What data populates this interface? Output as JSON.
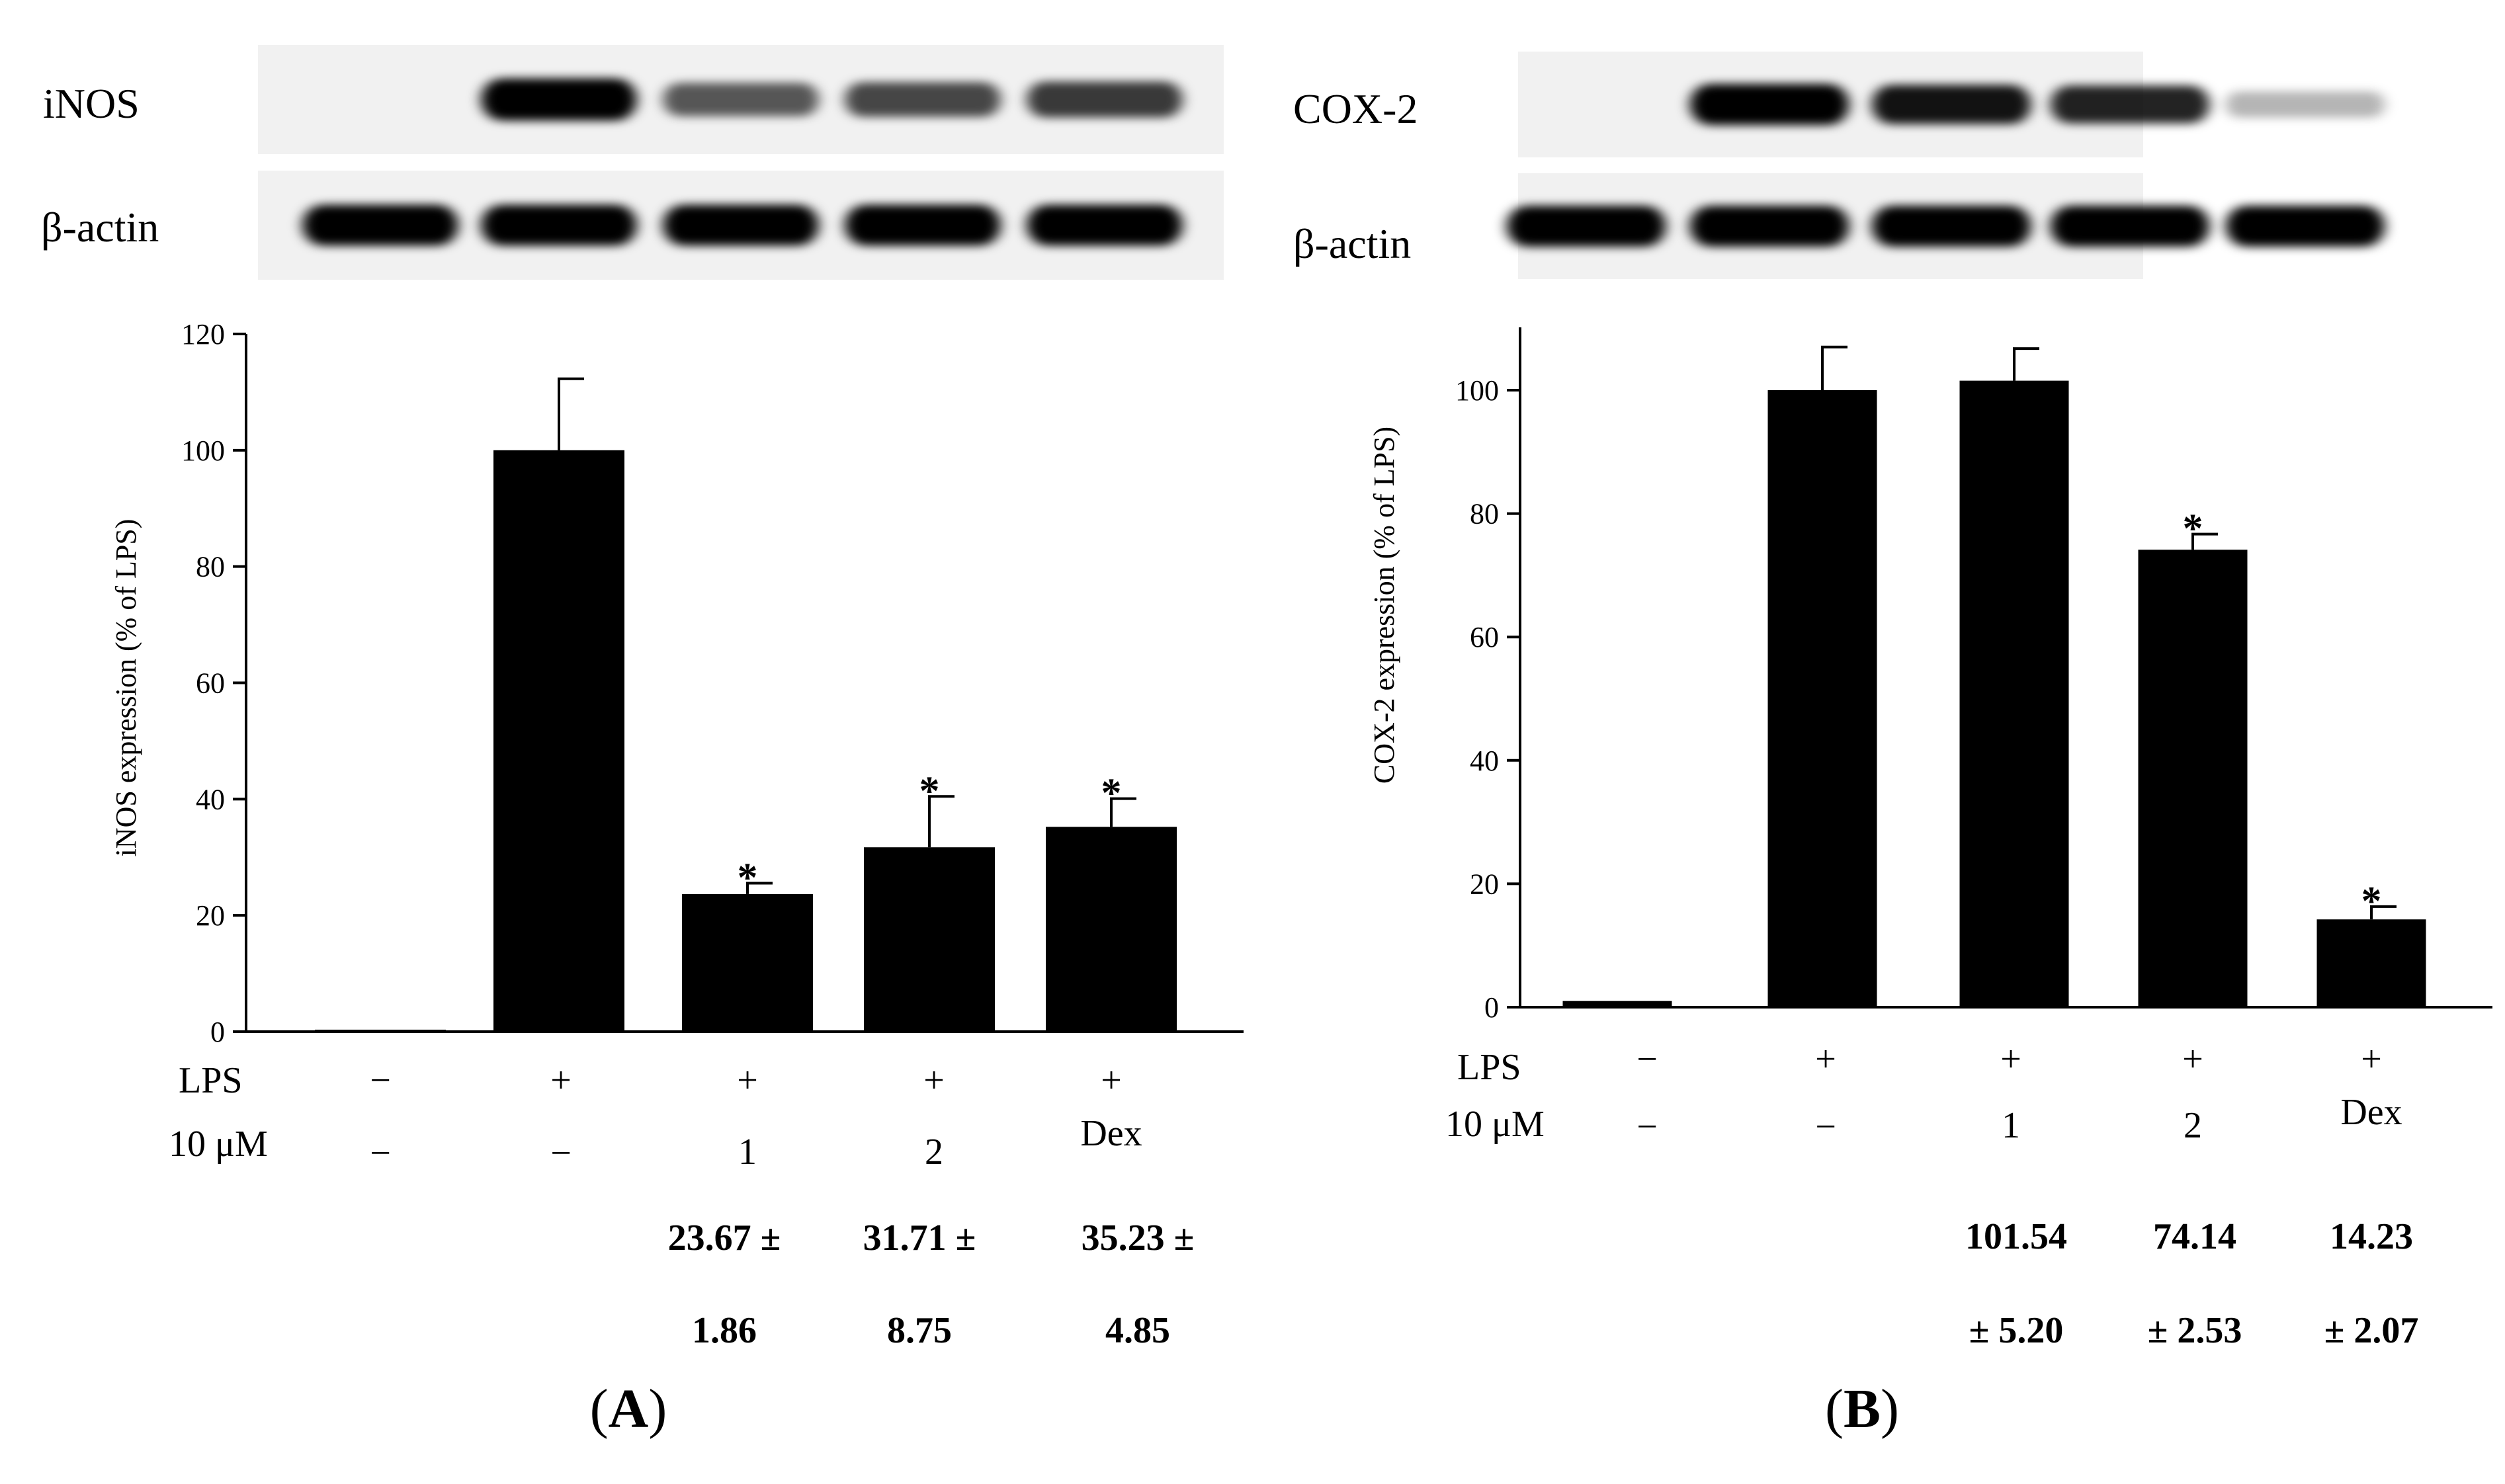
{
  "panels": [
    {
      "id": "A",
      "panel_label": "A",
      "blot": {
        "target_label": "iNOS",
        "actin_label": "β-actin",
        "target_intensity": [
          0.0,
          1.0,
          0.55,
          0.62,
          0.68
        ],
        "actin_intensity": [
          1.0,
          1.0,
          1.0,
          1.0,
          1.0
        ]
      },
      "conditions": {
        "lps_label": "LPS",
        "treatment_label": "10 μM",
        "lps": [
          "−",
          "+",
          "+",
          "+",
          "+"
        ],
        "treatment": [
          "−",
          "−",
          "1",
          "2",
          "Dex"
        ]
      },
      "value_lines": [
        [
          "",
          "",
          "23.67 ±",
          "31.71 ±",
          "35.23 ±"
        ],
        [
          "",
          "",
          "1.86",
          "8.75",
          "4.85"
        ]
      ],
      "chart_data": {
        "type": "bar",
        "ylabel": "iNOS expression (% of LPS)",
        "ylim": [
          0,
          120
        ],
        "yticks": [
          0,
          20,
          40,
          60,
          80,
          100,
          120
        ],
        "ytick_labels": [
          "0",
          "20",
          "40",
          "60",
          "80",
          "100",
          "120"
        ],
        "values": [
          0,
          100,
          23.67,
          31.71,
          35.23
        ],
        "errors": [
          0,
          12.3,
          1.86,
          8.75,
          4.85
        ],
        "significance": [
          "",
          "",
          "*",
          "*",
          "*"
        ]
      }
    },
    {
      "id": "B",
      "panel_label": "B",
      "blot": {
        "target_label": "COX-2",
        "actin_label": "β-actin",
        "target_intensity": [
          0.0,
          0.95,
          0.85,
          0.78,
          0.18
        ],
        "actin_intensity": [
          1.0,
          1.0,
          1.0,
          1.0,
          1.0
        ]
      },
      "conditions": {
        "lps_label": "LPS",
        "treatment_label": "10 μM",
        "lps": [
          "−",
          "+",
          "+",
          "+",
          "+"
        ],
        "treatment": [
          "−",
          "−",
          "1",
          "2",
          "Dex"
        ]
      },
      "value_lines": [
        [
          "",
          "",
          "101.54",
          "74.14",
          "14.23"
        ],
        [
          "",
          "",
          "± 5.20",
          "± 2.53",
          "± 2.07"
        ]
      ],
      "chart_data": {
        "type": "bar",
        "ylabel": "COX-2 expression (% of LPS)",
        "ylim": [
          0,
          110
        ],
        "yticks": [
          0,
          20,
          40,
          60,
          80,
          100
        ],
        "ytick_labels": [
          "0",
          "20",
          "40",
          "60",
          "80",
          "100"
        ],
        "values": [
          1,
          100,
          101.54,
          74.14,
          14.23
        ],
        "errors": [
          0,
          7,
          5.2,
          2.53,
          2.07
        ],
        "significance": [
          "",
          "",
          "",
          "*",
          "*"
        ]
      }
    }
  ]
}
